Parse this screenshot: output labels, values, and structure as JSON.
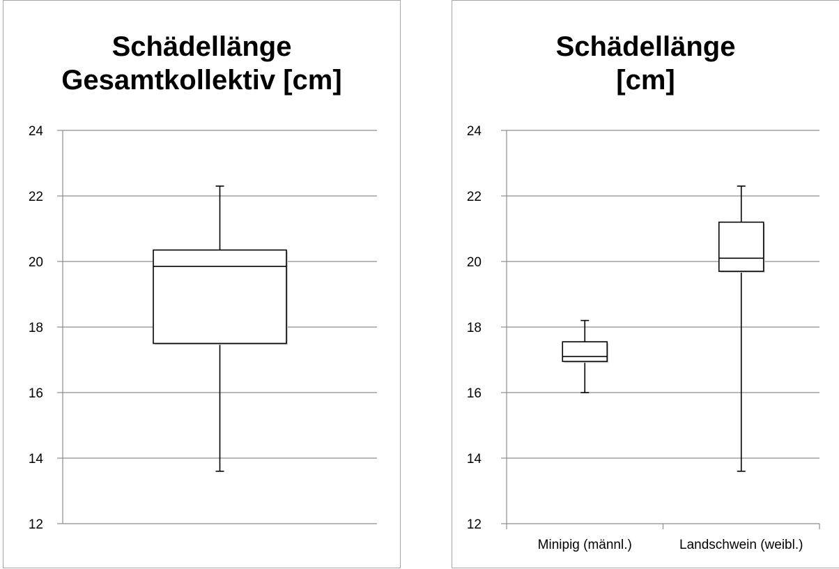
{
  "chart_data": [
    {
      "type": "box",
      "title_lines": [
        "Schädellänge",
        "Gesamtkollektiv [cm]"
      ],
      "ylim": [
        12,
        24
      ],
      "yticks": [
        12,
        14,
        16,
        18,
        20,
        22,
        24
      ],
      "grid": true,
      "categories": [
        ""
      ],
      "boxes": [
        {
          "min": 13.6,
          "q1": 17.5,
          "median": 19.85,
          "q3": 20.35,
          "max": 22.3
        }
      ]
    },
    {
      "type": "box",
      "title_lines": [
        "Schädellänge",
        "[cm]"
      ],
      "ylim": [
        12,
        24
      ],
      "yticks": [
        12,
        14,
        16,
        18,
        20,
        22,
        24
      ],
      "grid": true,
      "categories": [
        "Minipig (männl.)",
        "Landschwein (weibl.)"
      ],
      "boxes": [
        {
          "min": 16.0,
          "q1": 16.95,
          "median": 17.1,
          "q3": 17.55,
          "max": 18.2
        },
        {
          "min": 13.6,
          "q1": 19.7,
          "median": 20.1,
          "q3": 21.2,
          "max": 22.3
        }
      ]
    }
  ]
}
